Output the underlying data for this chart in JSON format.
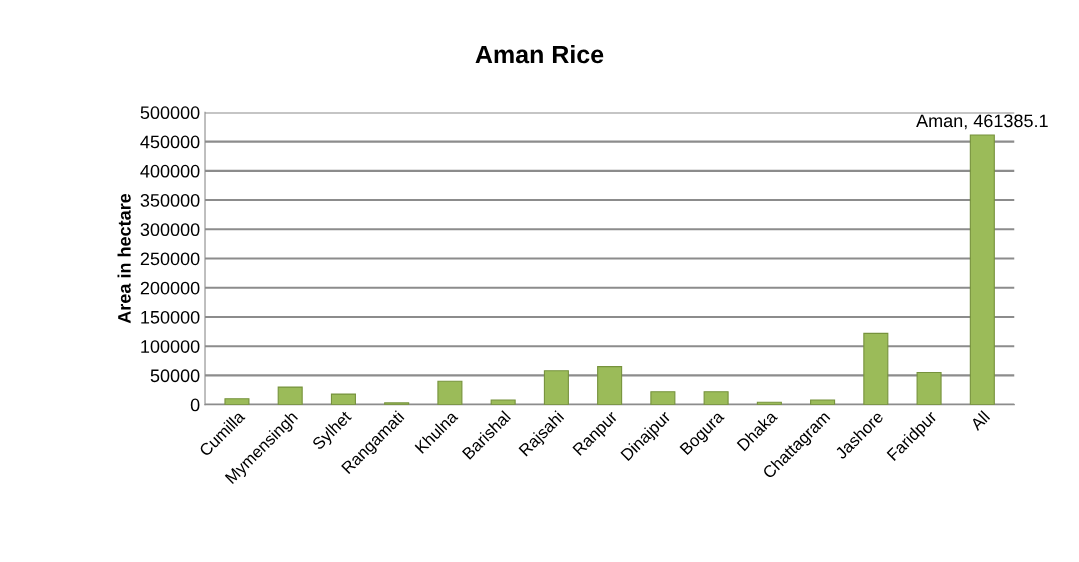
{
  "chart_data": {
    "type": "bar",
    "title": "Aman Rice",
    "ylabel": "Area in hectare",
    "categories": [
      "Cumilla",
      "Mymensingh",
      "Sylhet",
      "Rangamati",
      "Khulna",
      "Barishal",
      "Rajsahi",
      "Ranpur",
      "Dinajpur",
      "Bogura",
      "Dhaka",
      "Chattagram",
      "Jashore",
      "Faridpur",
      "All"
    ],
    "values": [
      10000,
      30000,
      18000,
      3000,
      40000,
      8000,
      58000,
      65000,
      22000,
      22000,
      4000,
      8000,
      122000,
      55000,
      461385.1
    ],
    "value_labels": [
      null,
      null,
      null,
      null,
      null,
      null,
      null,
      null,
      null,
      null,
      null,
      null,
      null,
      null,
      "Aman, 461385.1"
    ],
    "color": "#9bbb59",
    "ylim": [
      0,
      500000
    ],
    "yticks": [
      0,
      50000,
      100000,
      150000,
      200000,
      250000,
      300000,
      350000,
      400000,
      450000,
      500000
    ],
    "grid": "y"
  }
}
